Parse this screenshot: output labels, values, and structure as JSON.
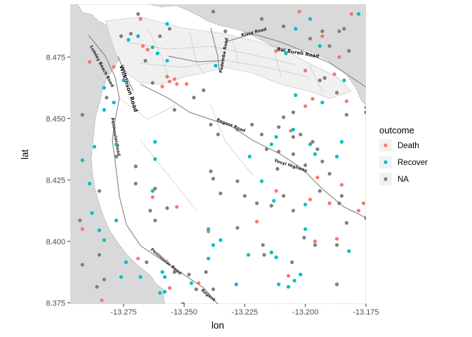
{
  "chart_data": {
    "type": "scatter",
    "title": "",
    "xlabel": "lon",
    "ylabel": "lat",
    "xlim": [
      -13.297,
      -13.175
    ],
    "ylim": [
      8.3745,
      8.4965
    ],
    "x_ticks": [
      -13.275,
      -13.25,
      -13.225,
      -13.2,
      -13.175
    ],
    "x_tick_labels": [
      "-13.275",
      "-13.250",
      "-13.225",
      "-13.200",
      "-13.175"
    ],
    "y_ticks": [
      8.375,
      8.4,
      8.425,
      8.45,
      8.475
    ],
    "y_tick_labels": [
      "8.375",
      "8.400",
      "8.425",
      "8.450",
      "8.475"
    ],
    "basemap": "street map of Freetown (Sierra Leone) with sea in grey",
    "map_labels": [
      "Lumley Beach Road",
      "Wilkinson Road",
      "Peninsular Road",
      "Regent Road",
      "Kissy Road",
      "Bai Bureh Road",
      "Pademba Road",
      "Youyi Highway",
      "Peninsular Road",
      "Regent"
    ],
    "legend": {
      "title": "outcome",
      "position": "right",
      "entries": [
        {
          "label": "Death",
          "color": "#F8766D"
        },
        {
          "label": "Recover",
          "color": "#00BFC4"
        },
        {
          "label": "NA",
          "color": "#7F7F7F"
        }
      ]
    },
    "series": [
      {
        "name": "Death",
        "color": "#F8766D",
        "points": [
          [
            -13.268,
            8.4905
          ],
          [
            -13.265,
            8.478
          ],
          [
            -13.257,
            8.467
          ],
          [
            -13.259,
            8.463
          ],
          [
            -13.256,
            8.465
          ],
          [
            -13.253,
            8.464
          ],
          [
            -13.249,
            8.464
          ],
          [
            -13.279,
            8.471
          ],
          [
            -13.289,
            8.473
          ],
          [
            -13.2025,
            8.4935
          ],
          [
            -13.212,
            8.4775
          ],
          [
            -13.2,
            8.4695
          ],
          [
            -13.193,
            8.4835
          ],
          [
            -13.188,
            8.468
          ],
          [
            -13.181,
            8.4925
          ],
          [
            -13.186,
            8.475
          ],
          [
            -13.2,
            8.455
          ],
          [
            -13.197,
            8.458
          ],
          [
            -13.183,
            8.457
          ],
          [
            -13.175,
            8.4545
          ],
          [
            -13.206,
            8.445
          ],
          [
            -13.212,
            8.4205
          ],
          [
            -13.198,
            8.417
          ],
          [
            -13.195,
            8.426
          ],
          [
            -13.19,
            8.4155
          ],
          [
            -13.185,
            8.423
          ],
          [
            -13.176,
            8.4155
          ],
          [
            -13.174,
            8.4275
          ],
          [
            -13.178,
            8.4125
          ],
          [
            -13.263,
            8.418
          ],
          [
            -13.24,
            8.404
          ],
          [
            -13.253,
            8.414
          ],
          [
            -13.22,
            8.408
          ],
          [
            -13.187,
            8.401
          ],
          [
            -13.196,
            8.4
          ],
          [
            -13.207,
            8.386
          ],
          [
            -13.244,
            8.383
          ],
          [
            -13.256,
            8.381
          ],
          [
            -13.269,
            8.393
          ],
          [
            -13.284,
            8.376
          ],
          [
            -13.292,
            8.405
          ],
          [
            -13.254,
            8.466
          ],
          [
            -13.267,
            8.4795
          ]
        ]
      },
      {
        "name": "Recover",
        "color": "#00BFC4",
        "points": [
          [
            -13.257,
            8.4885
          ],
          [
            -13.273,
            8.482
          ],
          [
            -13.269,
            8.4835
          ],
          [
            -13.261,
            8.4765
          ],
          [
            -13.263,
            8.479
          ],
          [
            -13.257,
            8.4735
          ],
          [
            -13.283,
            8.4625
          ],
          [
            -13.279,
            8.4565
          ],
          [
            -13.283,
            8.4535
          ],
          [
            -13.275,
            8.4655
          ],
          [
            -13.278,
            8.4395
          ],
          [
            -13.287,
            8.4385
          ],
          [
            -13.292,
            8.433
          ],
          [
            -13.289,
            8.4235
          ],
          [
            -13.262,
            8.4405
          ],
          [
            -13.262,
            8.4335
          ],
          [
            -13.237,
            8.4715
          ],
          [
            -13.204,
            8.4865
          ],
          [
            -13.208,
            8.4765
          ],
          [
            -13.198,
            8.4905
          ],
          [
            -13.194,
            8.4795
          ],
          [
            -13.204,
            8.4595
          ],
          [
            -13.193,
            8.4565
          ],
          [
            -13.184,
            8.4655
          ],
          [
            -13.174,
            8.4785
          ],
          [
            -13.178,
            8.4925
          ],
          [
            -13.212,
            8.4425
          ],
          [
            -13.205,
            8.4455
          ],
          [
            -13.198,
            8.4395
          ],
          [
            -13.196,
            8.4355
          ],
          [
            -13.214,
            8.4395
          ],
          [
            -13.185,
            8.4405
          ],
          [
            -13.187,
            8.4345
          ],
          [
            -13.223,
            8.4345
          ],
          [
            -13.218,
            8.4245
          ],
          [
            -13.213,
            8.4165
          ],
          [
            -13.2,
            8.415
          ],
          [
            -13.182,
            8.396
          ],
          [
            -13.2,
            8.405
          ],
          [
            -13.24,
            8.405
          ],
          [
            -13.24,
            8.393
          ],
          [
            -13.2285,
            8.3825
          ],
          [
            -13.211,
            8.3825
          ],
          [
            -13.207,
            8.3815
          ],
          [
            -13.2045,
            8.384
          ],
          [
            -13.212,
            8.3935
          ],
          [
            -13.214,
            8.3955
          ],
          [
            -13.202,
            8.3865
          ],
          [
            -13.288,
            8.4115
          ],
          [
            -13.283,
            8.4005
          ],
          [
            -13.285,
            8.4045
          ],
          [
            -13.278,
            8.4085
          ],
          [
            -13.276,
            8.3855
          ],
          [
            -13.274,
            8.3915
          ],
          [
            -13.258,
            8.3855
          ],
          [
            -13.247,
            8.383
          ],
          [
            -13.26,
            8.379
          ],
          [
            -13.268,
            8.3855
          ],
          [
            -13.259,
            8.3875
          ],
          [
            -13.258,
            8.3795
          ],
          [
            -13.238,
            8.3985
          ],
          [
            -13.2235,
            8.3945
          ],
          [
            -13.235,
            8.4005
          ],
          [
            -13.263,
            8.4205
          ]
        ]
      },
      {
        "name": "NA",
        "color": "#7F7F7F",
        "points": [
          [
            -13.269,
            8.4925
          ],
          [
            -13.272,
            8.4845
          ],
          [
            -13.256,
            8.4865
          ],
          [
            -13.26,
            8.4835
          ],
          [
            -13.238,
            8.4935
          ],
          [
            -13.233,
            8.4855
          ],
          [
            -13.218,
            8.4905
          ],
          [
            -13.209,
            8.4875
          ],
          [
            -13.193,
            8.4855
          ],
          [
            -13.198,
            8.4825
          ],
          [
            -13.186,
            8.4855
          ],
          [
            -13.19,
            8.4795
          ],
          [
            -13.182,
            8.4775
          ],
          [
            -13.184,
            8.4865
          ],
          [
            -13.192,
            8.4665
          ],
          [
            -13.187,
            8.4605
          ],
          [
            -13.194,
            8.4655
          ],
          [
            -13.183,
            8.4515
          ],
          [
            -13.175,
            8.4525
          ],
          [
            -13.205,
            8.4525
          ],
          [
            -13.209,
            8.4505
          ],
          [
            -13.211,
            8.4465
          ],
          [
            -13.205,
            8.4425
          ],
          [
            -13.197,
            8.4405
          ],
          [
            -13.195,
            8.4375
          ],
          [
            -13.193,
            8.4325
          ],
          [
            -13.205,
            8.4355
          ],
          [
            -13.2,
            8.431
          ],
          [
            -13.2115,
            8.4295
          ],
          [
            -13.209,
            8.4185
          ],
          [
            -13.214,
            8.4145
          ],
          [
            -13.22,
            8.4155
          ],
          [
            -13.225,
            8.4185
          ],
          [
            -13.205,
            8.4125
          ],
          [
            -13.19,
            8.4275
          ],
          [
            -13.194,
            8.4205
          ],
          [
            -13.186,
            8.4155
          ],
          [
            -13.175,
            8.4095
          ],
          [
            -13.185,
            8.4185
          ],
          [
            -13.235,
            8.4195
          ],
          [
            -13.228,
            8.4245
          ],
          [
            -13.238,
            8.4255
          ],
          [
            -13.239,
            8.4285
          ],
          [
            -13.262,
            8.4215
          ],
          [
            -13.257,
            8.4135
          ],
          [
            -13.262,
            8.4085
          ],
          [
            -13.264,
            8.4125
          ],
          [
            -13.27,
            8.4235
          ],
          [
            -13.27,
            8.4305
          ],
          [
            -13.278,
            8.4345
          ],
          [
            -13.285,
            8.4205
          ],
          [
            -13.293,
            8.4085
          ],
          [
            -13.285,
            8.3945
          ],
          [
            -13.292,
            8.3905
          ],
          [
            -13.286,
            8.3815
          ],
          [
            -13.283,
            8.3845
          ],
          [
            -13.2655,
            8.3915
          ],
          [
            -13.254,
            8.3875
          ],
          [
            -13.248,
            8.3865
          ],
          [
            -13.2505,
            8.3745
          ],
          [
            -13.245,
            8.3805
          ],
          [
            -13.238,
            8.3805
          ],
          [
            -13.241,
            8.3875
          ],
          [
            -13.217,
            8.3945
          ],
          [
            -13.228,
            8.4055
          ],
          [
            -13.2175,
            8.3985
          ],
          [
            -13.2055,
            8.3915
          ],
          [
            -13.2005,
            8.4015
          ],
          [
            -13.196,
            8.3985
          ],
          [
            -13.183,
            8.4075
          ],
          [
            -13.187,
            8.3825
          ],
          [
            -13.187,
            8.3985
          ],
          [
            -13.292,
            8.4515
          ],
          [
            -13.298,
            8.4445
          ],
          [
            -13.282,
            8.4585
          ],
          [
            -13.276,
            8.4835
          ],
          [
            -13.266,
            8.4735
          ],
          [
            -13.263,
            8.4645
          ],
          [
            -13.254,
            8.4535
          ],
          [
            -13.246,
            8.4585
          ],
          [
            -13.242,
            8.4615
          ],
          [
            -13.239,
            8.4475
          ],
          [
            -13.236,
            8.4435
          ],
          [
            -13.228,
            8.4455
          ],
          [
            -13.222,
            8.4475
          ],
          [
            -13.218,
            8.4435
          ],
          [
            -13.216,
            8.4375
          ],
          [
            -13.211,
            8.4365
          ],
          [
            -13.202,
            8.4435
          ]
        ]
      }
    ]
  }
}
